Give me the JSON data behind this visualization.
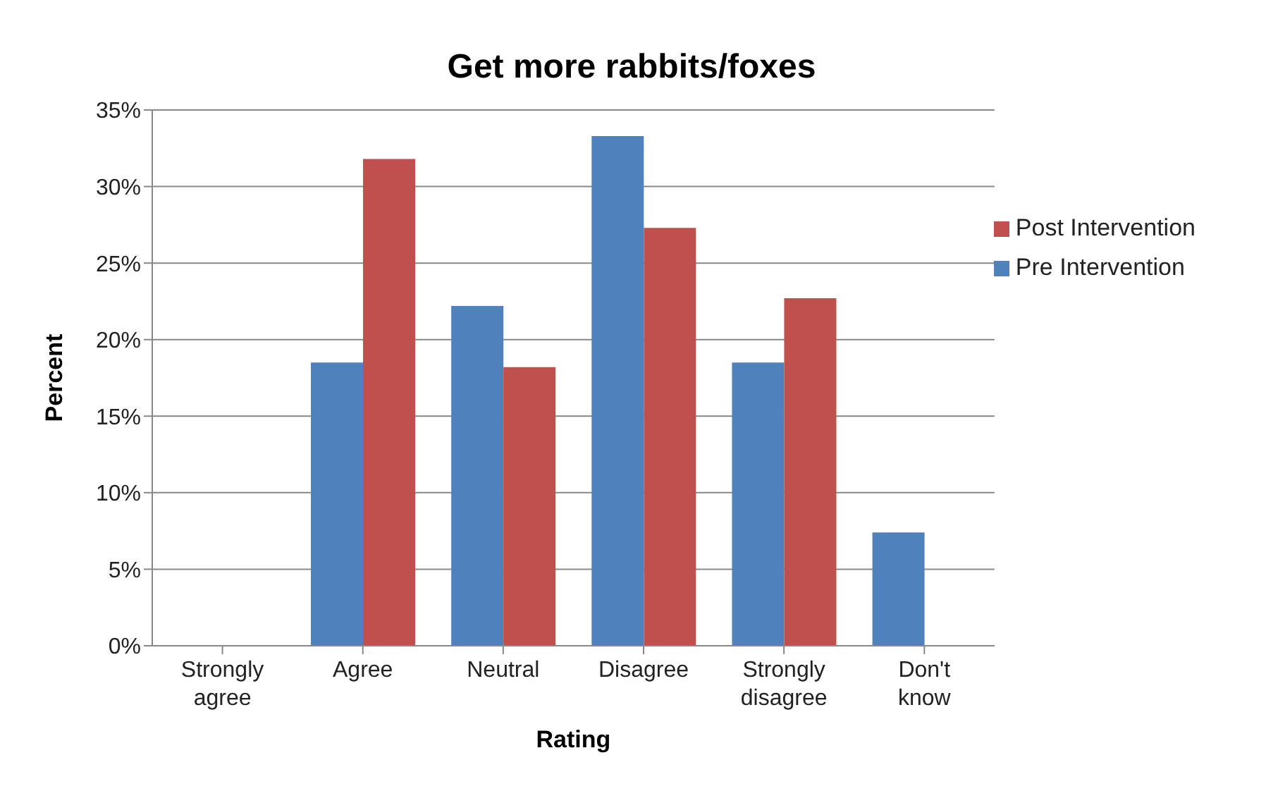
{
  "chart_data": {
    "type": "bar",
    "title": "Get more rabbits/foxes",
    "xlabel": "Rating",
    "ylabel": "Percent",
    "categories": [
      "Strongly agree",
      "Agree",
      "Neutral",
      "Disagree",
      "Strongly disagree",
      "Don't know"
    ],
    "series": [
      {
        "name": "Pre Intervention",
        "color": "#4f81bd",
        "values": [
          0,
          18.5,
          22.2,
          33.3,
          18.5,
          7.4
        ]
      },
      {
        "name": "Post Intervention",
        "color": "#c0504d",
        "values": [
          0,
          31.8,
          18.2,
          27.3,
          22.7,
          0
        ]
      }
    ],
    "ylim": [
      0,
      35
    ],
    "yticks": [
      {
        "value": 0,
        "label": "0%"
      },
      {
        "value": 5,
        "label": "5%"
      },
      {
        "value": 10,
        "label": "10%"
      },
      {
        "value": 15,
        "label": "15%"
      },
      {
        "value": 20,
        "label": "20%"
      },
      {
        "value": 25,
        "label": "25%"
      },
      {
        "value": 30,
        "label": "30%"
      },
      {
        "value": 35,
        "label": "35%"
      }
    ],
    "grid": "y",
    "legend": "top right"
  }
}
